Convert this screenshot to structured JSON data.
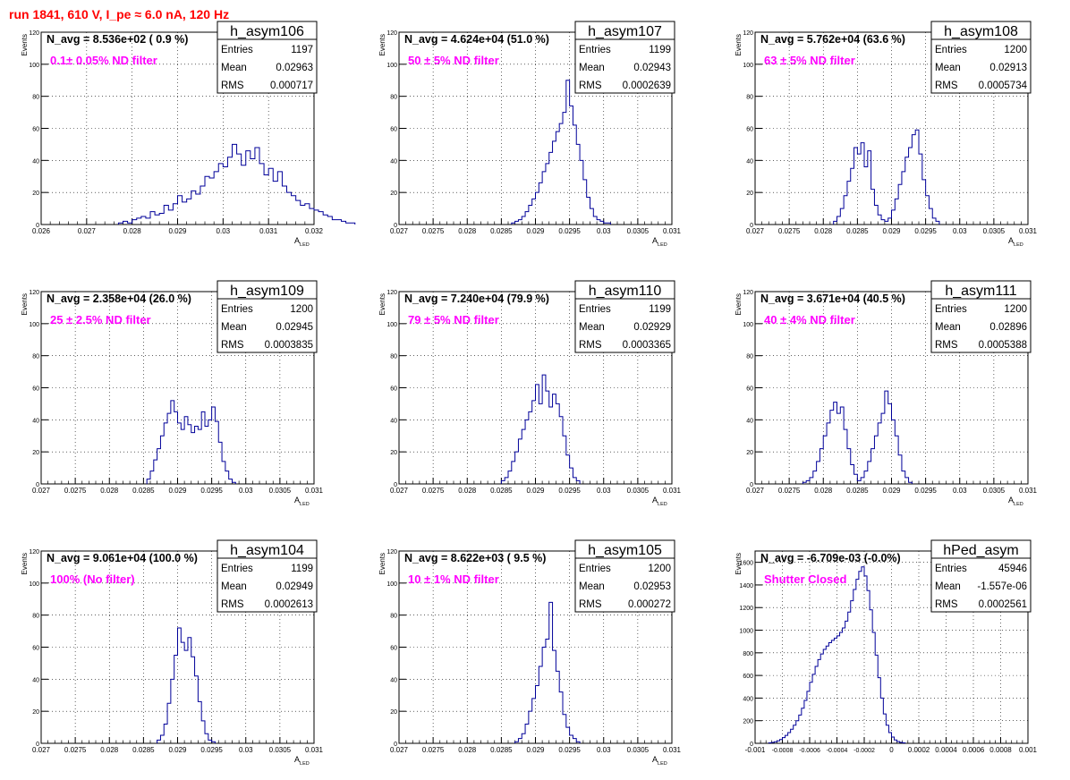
{
  "page": {
    "title": "run 1841,   610 V, I_pe ≈ 6.0 nA, 120 Hz"
  },
  "colors": {
    "histogram_line": "#000099",
    "annotation": "#ff00ff",
    "title": "#ff0000",
    "frame": "#000000",
    "grid": "#000000"
  },
  "chart_data": [
    {
      "type": "histogram",
      "name": "h_asym106",
      "ylabel": "Events",
      "xlabel": "A_LED",
      "ylim": [
        0,
        120
      ],
      "xlim": [
        0.026,
        0.032
      ],
      "xticks": [
        "0.026",
        "0.027",
        "0.028",
        "0.029",
        "0.03",
        "0.031",
        "0.032"
      ],
      "yticks": [
        "0",
        "20",
        "40",
        "60",
        "80",
        "100",
        "120"
      ],
      "stats": {
        "Entries": "1197",
        "Mean": "0.02963",
        "RMS": "0.000717"
      },
      "navg": "N_avg = 8.536e+02 ( 0.9 %)",
      "note": "0.1± 0.05% ND filter",
      "grid": true,
      "bins": {
        "x0": 0.0277,
        "width": 0.0001,
        "counts": [
          1,
          2,
          1,
          3,
          4,
          5,
          4,
          8,
          6,
          7,
          12,
          9,
          13,
          18,
          14,
          16,
          21,
          19,
          24,
          30,
          29,
          33,
          38,
          36,
          42,
          50,
          44,
          37,
          46,
          41,
          48,
          38,
          31,
          35,
          27,
          33,
          24,
          20,
          18,
          15,
          12,
          13,
          10,
          9,
          8,
          6,
          5,
          3,
          3,
          2,
          1,
          1
        ]
      }
    },
    {
      "type": "histogram",
      "name": "h_asym107",
      "ylabel": "Events",
      "xlabel": "A_LED",
      "ylim": [
        0,
        120
      ],
      "xlim": [
        0.027,
        0.031
      ],
      "xticks": [
        "0.027",
        "0.0275",
        "0.028",
        "0.0285",
        "0.029",
        "0.0295",
        "0.03",
        "0.0305",
        "0.031"
      ],
      "yticks": [
        "0",
        "20",
        "40",
        "60",
        "80",
        "100",
        "120"
      ],
      "stats": {
        "Entries": "1199",
        "Mean": "0.02943",
        "RMS": "0.0002639"
      },
      "navg": "N_avg = 4.624e+04 (51.0 %)",
      "note": "50 ± 5% ND filter",
      "grid": true,
      "bins": {
        "x0": 0.02865,
        "width": 5e-05,
        "counts": [
          1,
          2,
          3,
          5,
          8,
          12,
          16,
          20,
          26,
          33,
          38,
          45,
          52,
          58,
          63,
          70,
          90,
          74,
          62,
          50,
          40,
          28,
          17,
          10,
          5,
          3,
          2,
          1,
          1
        ]
      }
    },
    {
      "type": "histogram",
      "name": "h_asym108",
      "ylabel": "Events",
      "xlabel": "A_LED",
      "ylim": [
        0,
        120
      ],
      "xlim": [
        0.027,
        0.031
      ],
      "xticks": [
        "0.027",
        "0.0275",
        "0.028",
        "0.0285",
        "0.029",
        "0.0295",
        "0.03",
        "0.0305",
        "0.031"
      ],
      "yticks": [
        "0",
        "20",
        "40",
        "60",
        "80",
        "100",
        "120"
      ],
      "stats": {
        "Entries": "1200",
        "Mean": "0.02913",
        "RMS": "0.0005734"
      },
      "navg": "N_avg = 5.762e+04 (63.6 %)",
      "note": "63 ± 5% ND filter",
      "grid": true,
      "bins": {
        "x0": 0.02815,
        "width": 5e-05,
        "counts": [
          2,
          5,
          10,
          18,
          27,
          35,
          48,
          44,
          51,
          36,
          46,
          22,
          12,
          6,
          3,
          2,
          4,
          9,
          16,
          25,
          33,
          42,
          48,
          56,
          59,
          44,
          28,
          18,
          10,
          4,
          2
        ]
      }
    },
    {
      "type": "histogram",
      "name": "h_asym109",
      "ylabel": "Events",
      "xlabel": "A_LED",
      "ylim": [
        0,
        120
      ],
      "xlim": [
        0.027,
        0.031
      ],
      "xticks": [
        "0.027",
        "0.0275",
        "0.028",
        "0.0285",
        "0.029",
        "0.0295",
        "0.03",
        "0.0305",
        "0.031"
      ],
      "yticks": [
        "0",
        "20",
        "40",
        "60",
        "80",
        "100",
        "120"
      ],
      "stats": {
        "Entries": "1200",
        "Mean": "0.02945",
        "RMS": "0.0003835"
      },
      "navg": "N_avg = 2.358e+04 (26.0 %)",
      "note": "25 ± 2.5% ND filter",
      "grid": true,
      "bins": {
        "x0": 0.02855,
        "width": 5e-05,
        "counts": [
          3,
          8,
          15,
          22,
          30,
          38,
          44,
          52,
          45,
          38,
          34,
          42,
          37,
          32,
          36,
          34,
          45,
          36,
          40,
          48,
          39,
          26,
          14,
          8,
          3,
          1
        ]
      }
    },
    {
      "type": "histogram",
      "name": "h_asym110",
      "ylabel": "Events",
      "xlabel": "A_LED",
      "ylim": [
        0,
        120
      ],
      "xlim": [
        0.027,
        0.031
      ],
      "xticks": [
        "0.027",
        "0.0275",
        "0.028",
        "0.0285",
        "0.029",
        "0.0295",
        "0.03",
        "0.0305",
        "0.031"
      ],
      "yticks": [
        "0",
        "20",
        "40",
        "60",
        "80",
        "100",
        "120"
      ],
      "stats": {
        "Entries": "1199",
        "Mean": "0.02929",
        "RMS": "0.0003365"
      },
      "navg": "N_avg = 7.240e+04 (79.9 %)",
      "note": "79 ± 5% ND filter",
      "grid": true,
      "bins": {
        "x0": 0.0285,
        "width": 5e-05,
        "counts": [
          2,
          4,
          8,
          14,
          20,
          28,
          34,
          40,
          45,
          52,
          62,
          50,
          68,
          58,
          48,
          56,
          50,
          42,
          30,
          18,
          10,
          4,
          2
        ]
      }
    },
    {
      "type": "histogram",
      "name": "h_asym111",
      "ylabel": "Events",
      "xlabel": "A_LED",
      "ylim": [
        0,
        120
      ],
      "xlim": [
        0.027,
        0.031
      ],
      "xticks": [
        "0.027",
        "0.0275",
        "0.028",
        "0.0285",
        "0.029",
        "0.0295",
        "0.03",
        "0.0305",
        "0.031"
      ],
      "yticks": [
        "0",
        "20",
        "40",
        "60",
        "80",
        "100",
        "120"
      ],
      "stats": {
        "Entries": "1200",
        "Mean": "0.02896",
        "RMS": "0.0005388"
      },
      "navg": "N_avg = 3.671e+04 (40.5 %)",
      "note": "40 ± 4% ND filter",
      "grid": true,
      "bins": {
        "x0": 0.0277,
        "width": 5e-05,
        "counts": [
          1,
          2,
          4,
          8,
          14,
          22,
          30,
          38,
          46,
          51,
          44,
          48,
          34,
          22,
          12,
          6,
          2,
          4,
          8,
          14,
          22,
          30,
          38,
          44,
          58,
          50,
          40,
          30,
          18,
          8,
          4,
          1
        ]
      }
    },
    {
      "type": "histogram",
      "name": "h_asym104",
      "ylabel": "Events",
      "xlabel": "A_LED",
      "ylim": [
        0,
        120
      ],
      "xlim": [
        0.027,
        0.031
      ],
      "xticks": [
        "0.027",
        "0.0275",
        "0.028",
        "0.0285",
        "0.029",
        "0.0295",
        "0.03",
        "0.0305",
        "0.031"
      ],
      "yticks": [
        "0",
        "20",
        "40",
        "60",
        "80",
        "100",
        "120"
      ],
      "stats": {
        "Entries": "1199",
        "Mean": "0.02949",
        "RMS": "0.0002613"
      },
      "navg": "N_avg = 9.061e+04 (100.0 %)",
      "note": "100% (No filter)",
      "grid": true,
      "bins": {
        "x0": 0.0287,
        "width": 5e-05,
        "counts": [
          2,
          5,
          12,
          25,
          40,
          55,
          72,
          63,
          58,
          66,
          54,
          42,
          26,
          14,
          6,
          2,
          1
        ]
      }
    },
    {
      "type": "histogram",
      "name": "h_asym105",
      "ylabel": "Events",
      "xlabel": "A_LED",
      "ylim": [
        0,
        120
      ],
      "xlim": [
        0.027,
        0.031
      ],
      "xticks": [
        "0.027",
        "0.0275",
        "0.028",
        "0.0285",
        "0.029",
        "0.0295",
        "0.03",
        "0.0305",
        "0.031"
      ],
      "yticks": [
        "0",
        "20",
        "40",
        "60",
        "80",
        "100",
        "120"
      ],
      "stats": {
        "Entries": "1200",
        "Mean": "0.02953",
        "RMS": "0.000272"
      },
      "navg": "N_avg = 8.622e+03 ( 9.5 %)",
      "note": "10 ± 1% ND filter",
      "grid": true,
      "bins": {
        "x0": 0.0287,
        "width": 5e-05,
        "counts": [
          1,
          3,
          6,
          12,
          20,
          28,
          36,
          48,
          60,
          65,
          88,
          58,
          45,
          32,
          18,
          10,
          5,
          3,
          1
        ]
      }
    },
    {
      "type": "histogram",
      "name": "hPed_asym",
      "ylabel": "Events",
      "xlabel": "",
      "ylim": [
        0,
        1700
      ],
      "xlim": [
        -0.001,
        0.001
      ],
      "xticks": [
        "-0.001",
        "-0.0008",
        "-0.0006",
        "-0.0004",
        "-0.0002",
        "0",
        "0.0002",
        "0.0004",
        "0.0006",
        "0.0008",
        "0.001"
      ],
      "yticks": [
        "0",
        "200",
        "400",
        "600",
        "800",
        "1000",
        "1200",
        "1400",
        "1600"
      ],
      "stats": {
        "Entries": "45946",
        "Mean": "-1.557e-06",
        "RMS": "0.0002561"
      },
      "navg": "N_avg = -6.709e-03 (-0.0%)",
      "note": "Shutter Closed",
      "grid": true,
      "bins": {
        "x0": -0.0009,
        "width": 2e-05,
        "counts": [
          4,
          8,
          14,
          22,
          34,
          50,
          70,
          95,
          125,
          160,
          200,
          250,
          310,
          380,
          460,
          540,
          610,
          680,
          740,
          790,
          830,
          860,
          890,
          910,
          930,
          950,
          980,
          1020,
          1080,
          1160,
          1260,
          1360,
          1450,
          1520,
          1560,
          1480,
          1350,
          1180,
          980,
          780,
          580,
          400,
          260,
          160,
          95,
          55,
          30,
          16,
          8,
          4
        ]
      }
    }
  ]
}
